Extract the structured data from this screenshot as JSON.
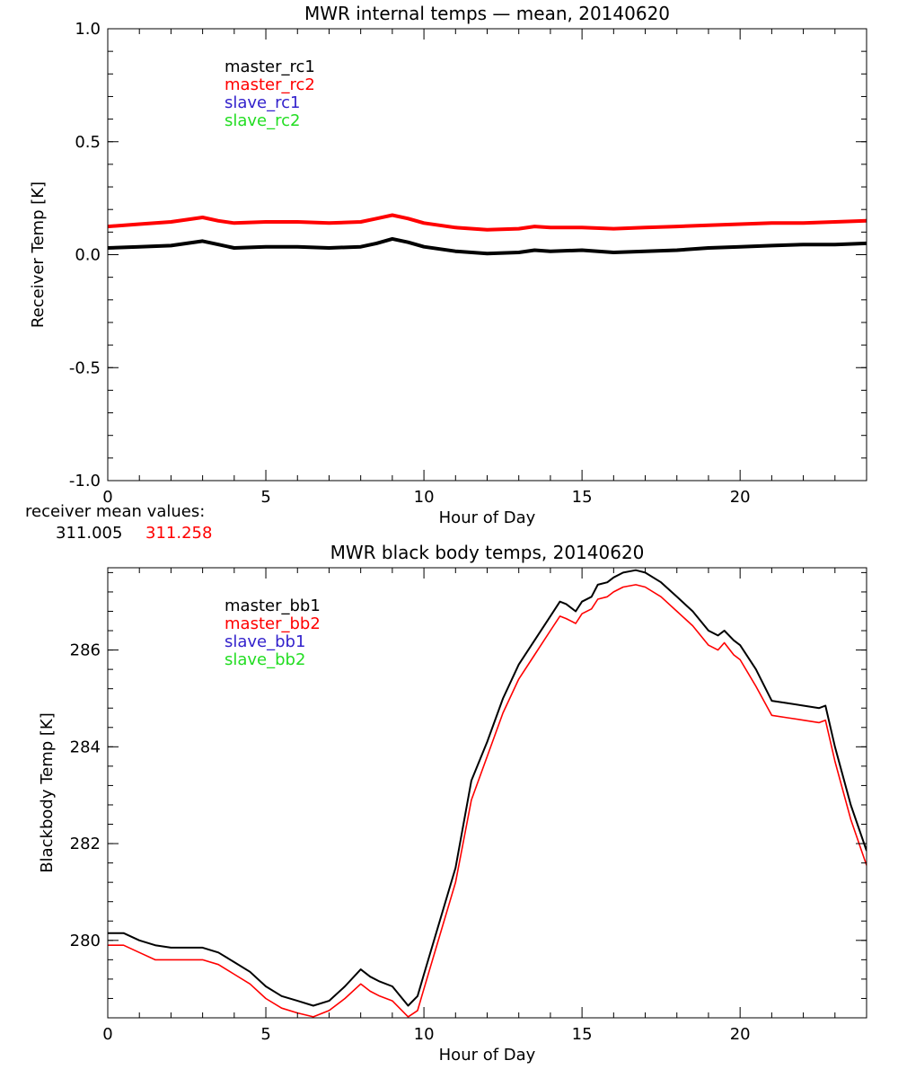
{
  "chart_data": [
    {
      "type": "line",
      "title": "MWR internal temps — mean, 20140620",
      "xlabel": "Hour of Day",
      "ylabel": "Receiver Temp [K]",
      "xlim": [
        0,
        24
      ],
      "ylim": [
        -1.0,
        1.0
      ],
      "xticks": [
        "0",
        "5",
        "10",
        "15",
        "20"
      ],
      "yticks": [
        "1.0",
        "0.5",
        "0.0",
        "-0.5",
        "-1.0"
      ],
      "grid": false,
      "legend": {
        "placement": "top-left",
        "entries": [
          "master_rc1",
          "master_rc2",
          "slave_rc1",
          "slave_rc2"
        ]
      },
      "series": [
        {
          "name": "master_rc1",
          "color": "#000000",
          "x": [
            0,
            1,
            2,
            2.5,
            3,
            3.5,
            4,
            5,
            6,
            7,
            8,
            8.5,
            9,
            9.5,
            10,
            10.5,
            11,
            12,
            13,
            13.5,
            14,
            15,
            16,
            17,
            18,
            19,
            20,
            21,
            22,
            23,
            24
          ],
          "y": [
            0.03,
            0.035,
            0.04,
            0.05,
            0.06,
            0.045,
            0.03,
            0.035,
            0.035,
            0.03,
            0.035,
            0.05,
            0.07,
            0.055,
            0.035,
            0.025,
            0.015,
            0.005,
            0.01,
            0.02,
            0.015,
            0.02,
            0.01,
            0.015,
            0.02,
            0.03,
            0.035,
            0.04,
            0.045,
            0.045,
            0.05
          ]
        },
        {
          "name": "master_rc2",
          "color": "#ff0000",
          "x": [
            0,
            1,
            2,
            2.5,
            3,
            3.5,
            4,
            5,
            6,
            7,
            8,
            8.5,
            9,
            9.5,
            10,
            10.5,
            11,
            12,
            13,
            13.5,
            14,
            15,
            16,
            17,
            18,
            19,
            20,
            21,
            22,
            23,
            24
          ],
          "y": [
            0.125,
            0.135,
            0.145,
            0.155,
            0.165,
            0.15,
            0.14,
            0.145,
            0.145,
            0.14,
            0.145,
            0.16,
            0.175,
            0.16,
            0.14,
            0.13,
            0.12,
            0.11,
            0.115,
            0.125,
            0.12,
            0.12,
            0.115,
            0.12,
            0.125,
            0.13,
            0.135,
            0.14,
            0.14,
            0.145,
            0.15
          ]
        },
        {
          "name": "slave_rc1",
          "color": "#3322cc",
          "x": [],
          "y": []
        },
        {
          "name": "slave_rc2",
          "color": "#22dd22",
          "x": [],
          "y": []
        }
      ],
      "annotations": {
        "label": "receiver mean values:",
        "values": [
          {
            "text": "311.005",
            "color": "#000000"
          },
          {
            "text": "311.258",
            "color": "#ff0000"
          }
        ]
      }
    },
    {
      "type": "line",
      "title": "MWR black body temps, 20140620",
      "xlabel": "Hour of Day",
      "ylabel": "Blackbody Temp [K]",
      "xlim": [
        0,
        24
      ],
      "ylim": [
        278.4,
        287.7
      ],
      "xticks": [
        "0",
        "5",
        "10",
        "15",
        "20"
      ],
      "yticks": [
        "280",
        "282",
        "284",
        "286"
      ],
      "grid": false,
      "legend": {
        "placement": "top-left",
        "entries": [
          "master_bb1",
          "master_bb2",
          "slave_bb1",
          "slave_bb2"
        ]
      },
      "series": [
        {
          "name": "master_bb1",
          "color": "#000000",
          "x": [
            0,
            0.5,
            1,
            1.5,
            2,
            2.5,
            3,
            3.5,
            4,
            4.5,
            5,
            5.5,
            6,
            6.5,
            7,
            7.5,
            8,
            8.3,
            8.6,
            9,
            9.5,
            9.8,
            10,
            10.5,
            11,
            11.5,
            12,
            12.5,
            13,
            13.5,
            14,
            14.3,
            14.5,
            14.8,
            15,
            15.3,
            15.5,
            15.8,
            16,
            16.3,
            16.7,
            17,
            17.5,
            18,
            18.5,
            19,
            19.3,
            19.5,
            19.8,
            20,
            20.5,
            21,
            21.5,
            22,
            22.5,
            22.7,
            23,
            23.5,
            24
          ],
          "y": [
            280.15,
            280.15,
            280.0,
            279.9,
            279.85,
            279.85,
            279.85,
            279.75,
            279.55,
            279.35,
            279.05,
            278.85,
            278.75,
            278.65,
            278.75,
            279.05,
            279.4,
            279.25,
            279.15,
            279.05,
            278.65,
            278.85,
            279.3,
            280.4,
            281.5,
            283.3,
            284.1,
            285.0,
            285.7,
            286.2,
            286.7,
            287.0,
            286.95,
            286.8,
            287.0,
            287.1,
            287.35,
            287.4,
            287.5,
            287.6,
            287.65,
            287.6,
            287.4,
            287.1,
            286.8,
            286.4,
            286.3,
            286.4,
            286.2,
            286.1,
            285.6,
            284.95,
            284.9,
            284.85,
            284.8,
            284.85,
            284.0,
            282.8,
            281.85
          ]
        },
        {
          "name": "master_bb2",
          "color": "#ff0000",
          "x": [
            0,
            0.5,
            1,
            1.5,
            2,
            2.5,
            3,
            3.5,
            4,
            4.5,
            5,
            5.5,
            6,
            6.5,
            7,
            7.5,
            8,
            8.3,
            8.6,
            9,
            9.5,
            9.8,
            10,
            10.5,
            11,
            11.5,
            12,
            12.5,
            13,
            13.5,
            14,
            14.3,
            14.5,
            14.8,
            15,
            15.3,
            15.5,
            15.8,
            16,
            16.3,
            16.7,
            17,
            17.5,
            18,
            18.5,
            19,
            19.3,
            19.5,
            19.8,
            20,
            20.5,
            21,
            21.5,
            22,
            22.5,
            22.7,
            23,
            23.5,
            24
          ],
          "y": [
            279.9,
            279.9,
            279.75,
            279.6,
            279.6,
            279.6,
            279.6,
            279.5,
            279.3,
            279.1,
            278.8,
            278.6,
            278.5,
            278.42,
            278.55,
            278.8,
            279.1,
            278.95,
            278.85,
            278.75,
            278.42,
            278.55,
            279.0,
            280.1,
            281.2,
            282.9,
            283.8,
            284.7,
            285.4,
            285.9,
            286.4,
            286.7,
            286.65,
            286.55,
            286.75,
            286.85,
            287.05,
            287.1,
            287.2,
            287.3,
            287.35,
            287.3,
            287.1,
            286.8,
            286.5,
            286.1,
            286.0,
            286.15,
            285.9,
            285.8,
            285.25,
            284.65,
            284.6,
            284.55,
            284.5,
            284.55,
            283.7,
            282.5,
            281.55
          ]
        },
        {
          "name": "slave_bb1",
          "color": "#3322cc",
          "x": [],
          "y": []
        },
        {
          "name": "slave_bb2",
          "color": "#22dd22",
          "x": [],
          "y": []
        }
      ]
    }
  ]
}
